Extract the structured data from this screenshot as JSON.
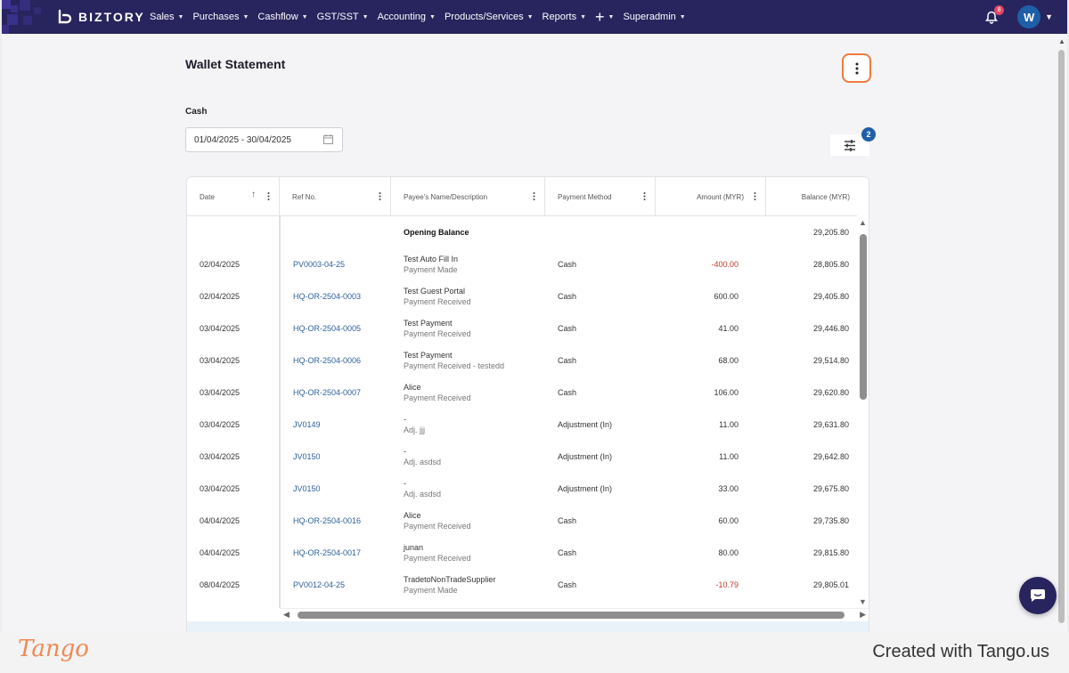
{
  "brand": {
    "name": "BIZTORY"
  },
  "nav": {
    "items": [
      {
        "label": "Sales"
      },
      {
        "label": "Purchases"
      },
      {
        "label": "Cashflow"
      },
      {
        "label": "GST/SST"
      },
      {
        "label": "Accounting"
      },
      {
        "label": "Products/Services"
      },
      {
        "label": "Reports"
      },
      {
        "label": "+"
      },
      {
        "label": "Superadmin"
      }
    ],
    "notification_count": "8",
    "avatar_initial": "W"
  },
  "page": {
    "title": "Wallet Statement",
    "account_label": "Cash",
    "date_range": "01/04/2025 - 30/04/2025",
    "filter_count": "2"
  },
  "table": {
    "columns": {
      "date": "Date",
      "ref": "Ref No.",
      "payee": "Payee's Name/Description",
      "method": "Payment Method",
      "amount": "Amount (MYR)",
      "balance": "Balance (MYR)"
    },
    "opening": {
      "label": "Opening Balance",
      "balance": "29,205.80"
    },
    "rows": [
      {
        "date": "02/04/2025",
        "ref": "PV0003-04-25",
        "payee": "Test Auto Fill In",
        "desc": "Payment Made",
        "method": "Cash",
        "amount": "-400.00",
        "balance": "28,805.80",
        "negative": true
      },
      {
        "date": "02/04/2025",
        "ref": "HQ-OR-2504-0003",
        "payee": "Test Guest Portal",
        "desc": "Payment Received",
        "method": "Cash",
        "amount": "600.00",
        "balance": "29,405.80",
        "negative": false
      },
      {
        "date": "03/04/2025",
        "ref": "HQ-OR-2504-0005",
        "payee": "Test Payment",
        "desc": "Payment Received",
        "method": "Cash",
        "amount": "41.00",
        "balance": "29,446.80",
        "negative": false
      },
      {
        "date": "03/04/2025",
        "ref": "HQ-OR-2504-0006",
        "payee": "Test Payment",
        "desc": "Payment Received - testedd",
        "method": "Cash",
        "amount": "68.00",
        "balance": "29,514.80",
        "negative": false
      },
      {
        "date": "03/04/2025",
        "ref": "HQ-OR-2504-0007",
        "payee": "Alice",
        "desc": "Payment Received",
        "method": "Cash",
        "amount": "106.00",
        "balance": "29,620.80",
        "negative": false
      },
      {
        "date": "03/04/2025",
        "ref": "JV0149",
        "payee": "-",
        "desc": "Adj. jjj",
        "method": "Adjustment (In)",
        "amount": "11.00",
        "balance": "29,631.80",
        "negative": false
      },
      {
        "date": "03/04/2025",
        "ref": "JV0150",
        "payee": "-",
        "desc": "Adj. asdsd",
        "method": "Adjustment (In)",
        "amount": "11.00",
        "balance": "29,642.80",
        "negative": false
      },
      {
        "date": "03/04/2025",
        "ref": "JV0150",
        "payee": "-",
        "desc": "Adj. asdsd",
        "method": "Adjustment (In)",
        "amount": "33.00",
        "balance": "29,675.80",
        "negative": false
      },
      {
        "date": "04/04/2025",
        "ref": "HQ-OR-2504-0016",
        "payee": "Alice",
        "desc": "Payment Received",
        "method": "Cash",
        "amount": "60.00",
        "balance": "29,735.80",
        "negative": false
      },
      {
        "date": "04/04/2025",
        "ref": "HQ-OR-2504-0017",
        "payee": "junan",
        "desc": "Payment Received",
        "method": "Cash",
        "amount": "80.00",
        "balance": "29,815.80",
        "negative": false
      },
      {
        "date": "08/04/2025",
        "ref": "PV0012-04-25",
        "payee": "TradetoNonTradeSupplier",
        "desc": "Payment Made",
        "method": "Cash",
        "amount": "-10.79",
        "balance": "29,805.01",
        "negative": true
      }
    ]
  },
  "footer": {
    "logo": "Tango",
    "created": "Created with Tango.us"
  },
  "colors": {
    "nav": "#27245e",
    "link": "#2e5f9e",
    "negative": "#c0392b",
    "highlight": "#f07a3e",
    "badge": "#1f5fa8"
  }
}
